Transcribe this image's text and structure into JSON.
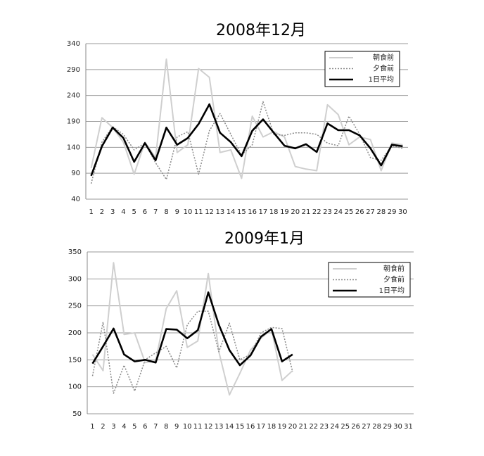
{
  "chart_data": [
    {
      "type": "line",
      "title": "2008年12月",
      "categories": [
        1,
        2,
        3,
        4,
        5,
        6,
        7,
        8,
        9,
        10,
        11,
        12,
        13,
        14,
        15,
        16,
        17,
        18,
        19,
        20,
        21,
        22,
        23,
        24,
        25,
        26,
        27,
        28,
        29,
        30
      ],
      "series": [
        {
          "name": "朝食前",
          "color": "#cfcfcf",
          "style": "solid",
          "values": [
            100,
            197,
            178,
            150,
            88,
            150,
            120,
            310,
            130,
            145,
            292,
            275,
            130,
            135,
            80,
            200,
            160,
            170,
            160,
            103,
            98,
            95,
            222,
            203,
            145,
            160,
            155,
            95,
            148,
            145
          ]
        },
        {
          "name": "夕食前",
          "color": "#8a8a8a",
          "style": "dotted",
          "values": [
            70,
            150,
            180,
            165,
            135,
            148,
            110,
            78,
            160,
            170,
            88,
            172,
            205,
            165,
            125,
            145,
            228,
            165,
            163,
            168,
            168,
            165,
            148,
            143,
            200,
            165,
            120,
            115,
            143,
            138
          ]
        },
        {
          "name": "1日平均",
          "color": "#000000",
          "style": "bold",
          "values": [
            85,
            142,
            178,
            158,
            112,
            148,
            115,
            178,
            145,
            158,
            185,
            223,
            168,
            150,
            123,
            172,
            194,
            168,
            143,
            138,
            146,
            131,
            186,
            173,
            173,
            163,
            138,
            105,
            145,
            142
          ]
        }
      ],
      "ylim": [
        40,
        340
      ],
      "yticks": [
        40,
        90,
        140,
        190,
        240,
        290,
        340
      ],
      "grid": true,
      "legend": "upper right"
    },
    {
      "type": "line",
      "title": "2009年1月",
      "categories": [
        1,
        2,
        3,
        4,
        5,
        6,
        7,
        8,
        9,
        10,
        11,
        12,
        13,
        14,
        15,
        16,
        17,
        18,
        19,
        20,
        21,
        22,
        23,
        24,
        25,
        26,
        27,
        28,
        29,
        30,
        31
      ],
      "series": [
        {
          "name": "朝食前",
          "color": "#cfcfcf",
          "style": "solid",
          "values": [
            160,
            130,
            330,
            197,
            200,
            145,
            148,
            245,
            278,
            173,
            185,
            310,
            165,
            85,
            125,
            168,
            190,
            207,
            112,
            130,
            null,
            null,
            null,
            null,
            null,
            null,
            null,
            null,
            null,
            null,
            null
          ]
        },
        {
          "name": "夕食前",
          "color": "#8a8a8a",
          "style": "dotted",
          "values": [
            120,
            220,
            88,
            140,
            92,
            150,
            163,
            175,
            135,
            215,
            240,
            240,
            165,
            218,
            150,
            160,
            200,
            210,
            208,
            128,
            null,
            null,
            null,
            null,
            null,
            null,
            null,
            null,
            null,
            null,
            null
          ]
        },
        {
          "name": "1日平均",
          "color": "#000000",
          "style": "bold",
          "values": [
            143,
            175,
            208,
            160,
            147,
            150,
            145,
            207,
            206,
            190,
            205,
            275,
            215,
            168,
            140,
            158,
            193,
            207,
            147,
            160,
            null,
            null,
            null,
            null,
            null,
            null,
            null,
            null,
            null,
            null,
            null
          ]
        }
      ],
      "ylim": [
        50,
        350
      ],
      "yticks": [
        50,
        100,
        150,
        200,
        250,
        300,
        350
      ],
      "grid": true,
      "legend": "upper right"
    }
  ]
}
